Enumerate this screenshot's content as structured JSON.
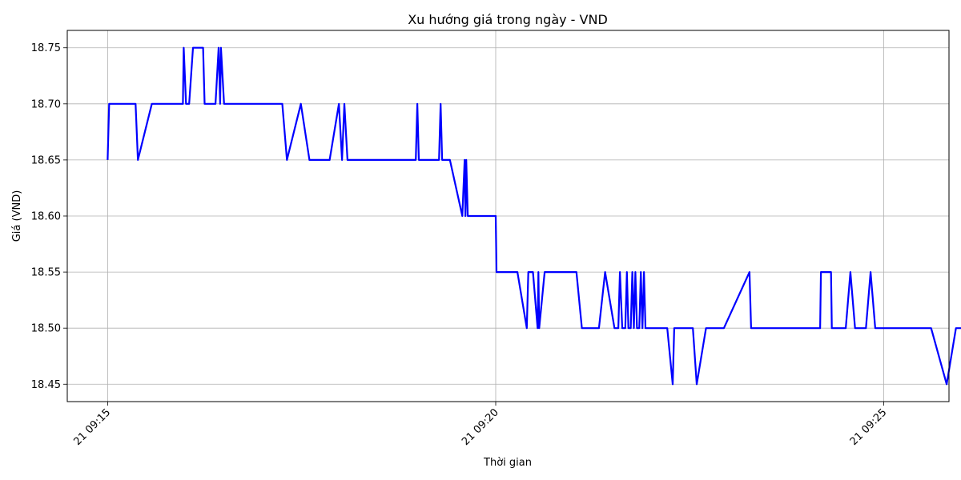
{
  "chart_data": {
    "type": "line",
    "title": "Xu hướng giá trong ngày - VND",
    "xlabel": "Thời gian",
    "ylabel": "Giá (VND)",
    "xlim": [
      -0.52,
      10.84
    ],
    "ylim": [
      18.4345,
      18.7655
    ],
    "grid": true,
    "x_ticks": [
      {
        "label": "21 09:15",
        "value": 0
      },
      {
        "label": "21 09:20",
        "value": 5
      },
      {
        "label": "21 09:25",
        "value": 10
      }
    ],
    "y_ticks": [
      {
        "label": "18.45",
        "value": 18.45
      },
      {
        "label": "18.50",
        "value": 18.5
      },
      {
        "label": "18.55",
        "value": 18.55
      },
      {
        "label": "18.60",
        "value": 18.6
      },
      {
        "label": "18.65",
        "value": 18.65
      },
      {
        "label": "18.70",
        "value": 18.7
      },
      {
        "label": "18.75",
        "value": 18.75
      }
    ],
    "series": [
      {
        "color": "#0000ff",
        "x_unit": "minutes after 09:15 on day 21",
        "points": [
          [
            0.0,
            18.65
          ],
          [
            0.02,
            18.7
          ],
          [
            0.36,
            18.7
          ],
          [
            0.39,
            18.65
          ],
          [
            0.57,
            18.7
          ],
          [
            0.97,
            18.7
          ],
          [
            0.98,
            18.75
          ],
          [
            1.01,
            18.7
          ],
          [
            1.05,
            18.7
          ],
          [
            1.1,
            18.75
          ],
          [
            1.23,
            18.75
          ],
          [
            1.25,
            18.7
          ],
          [
            1.39,
            18.7
          ],
          [
            1.43,
            18.75
          ],
          [
            1.45,
            18.7
          ],
          [
            1.46,
            18.75
          ],
          [
            1.5,
            18.7
          ],
          [
            2.25,
            18.7
          ],
          [
            2.31,
            18.65
          ],
          [
            2.49,
            18.7
          ],
          [
            2.6,
            18.65
          ],
          [
            2.86,
            18.65
          ],
          [
            2.98,
            18.7
          ],
          [
            3.02,
            18.65
          ],
          [
            3.05,
            18.7
          ],
          [
            3.09,
            18.65
          ],
          [
            3.97,
            18.65
          ],
          [
            3.99,
            18.7
          ],
          [
            4.01,
            18.65
          ],
          [
            4.27,
            18.65
          ],
          [
            4.29,
            18.7
          ],
          [
            4.31,
            18.65
          ],
          [
            4.41,
            18.65
          ],
          [
            4.57,
            18.6
          ],
          [
            4.6,
            18.65
          ],
          [
            4.61,
            18.6
          ],
          [
            4.62,
            18.65
          ],
          [
            4.64,
            18.6
          ],
          [
            5.0,
            18.6
          ],
          [
            5.01,
            18.55
          ],
          [
            5.28,
            18.55
          ],
          [
            5.4,
            18.5
          ],
          [
            5.42,
            18.55
          ],
          [
            5.48,
            18.55
          ],
          [
            5.54,
            18.5
          ],
          [
            5.55,
            18.55
          ],
          [
            5.56,
            18.5
          ],
          [
            5.63,
            18.55
          ],
          [
            6.04,
            18.55
          ],
          [
            6.11,
            18.5
          ],
          [
            6.33,
            18.5
          ],
          [
            6.41,
            18.55
          ],
          [
            6.53,
            18.5
          ],
          [
            6.58,
            18.5
          ],
          [
            6.6,
            18.55
          ],
          [
            6.63,
            18.5
          ],
          [
            6.67,
            18.5
          ],
          [
            6.69,
            18.55
          ],
          [
            6.71,
            18.5
          ],
          [
            6.74,
            18.5
          ],
          [
            6.76,
            18.55
          ],
          [
            6.78,
            18.5
          ],
          [
            6.8,
            18.55
          ],
          [
            6.82,
            18.5
          ],
          [
            6.85,
            18.5
          ],
          [
            6.87,
            18.55
          ],
          [
            6.89,
            18.5
          ],
          [
            6.91,
            18.55
          ],
          [
            6.93,
            18.5
          ],
          [
            7.21,
            18.5
          ],
          [
            7.28,
            18.45
          ],
          [
            7.3,
            18.5
          ],
          [
            7.54,
            18.5
          ],
          [
            7.59,
            18.45
          ],
          [
            7.71,
            18.5
          ],
          [
            7.94,
            18.5
          ],
          [
            8.27,
            18.55
          ],
          [
            8.29,
            18.5
          ],
          [
            9.18,
            18.5
          ],
          [
            9.19,
            18.55
          ],
          [
            9.32,
            18.55
          ],
          [
            9.33,
            18.5
          ],
          [
            9.51,
            18.5
          ],
          [
            9.57,
            18.55
          ],
          [
            9.63,
            18.5
          ],
          [
            9.77,
            18.5
          ],
          [
            9.83,
            18.55
          ],
          [
            9.89,
            18.5
          ],
          [
            10.61,
            18.5
          ],
          [
            10.81,
            18.45
          ],
          [
            10.93,
            18.5
          ],
          [
            11.17,
            18.5
          ]
        ]
      }
    ]
  }
}
